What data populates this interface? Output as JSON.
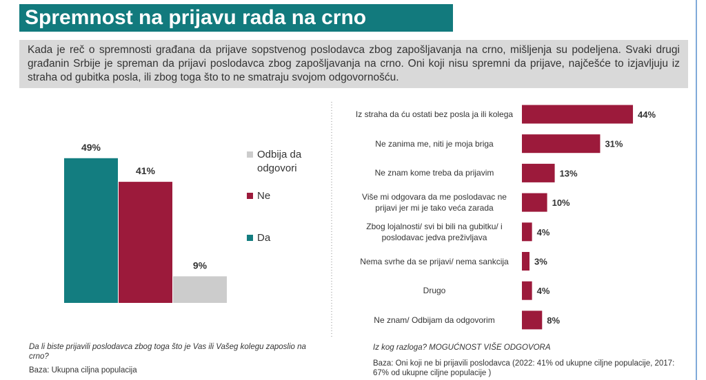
{
  "title": "Spremnost na prijavu rada na crno",
  "intro": "Kada je reč o spremnosti građana da prijave sopstvenog poslodavca zbog zapošljavanja na crno, mišljenja su podeljena. Svaki drugi građanin Srbije je spreman da prijavi poslodavca zbog zapošljavanja na crno. Oni koji nisu spremni da prijave, najčešće to izjavljuju iz straha od gubitka posla, ili zbog toga što to ne smatraju svojom odgovornošću.",
  "chart_data": [
    {
      "type": "bar",
      "categories": [
        null
      ],
      "legend": "right",
      "series": [
        {
          "name": "Da",
          "color": "#137d80",
          "values": [
            49
          ],
          "value_labels": [
            "49%"
          ]
        },
        {
          "name": "Ne",
          "color": "#9c1a3b",
          "values": [
            41
          ],
          "value_labels": [
            "41%"
          ]
        },
        {
          "name": "Odbija da odgovori",
          "color": "#cccccc",
          "values": [
            9
          ],
          "value_labels": [
            "9%"
          ]
        }
      ]
    },
    {
      "type": "hbar",
      "color": "#9c1a3b",
      "categories": [
        "Iz straha da ću ostati bez posla ja ili kolega",
        "Ne zanima me, niti je moja briga",
        "Ne znam kome treba da prijavim",
        "Više mi odgovara da me poslodavac ne prijavi jer mi je tako veća zarada",
        "Zbog lojalnosti/ svi bi bili na gubitku/ i poslodavac jedva preživljava",
        "Nema svrhe da se prijavi/ nema sankcija",
        "Drugo",
        "Ne znam/ Odbijam da odgovorim"
      ],
      "values": [
        44,
        31,
        13,
        10,
        4,
        3,
        4,
        8
      ],
      "value_labels": [
        "44%",
        "31%",
        "13%",
        "10%",
        "4%",
        "3%",
        "4%",
        "8%"
      ]
    }
  ],
  "notes": {
    "left_question": "Da li biste prijavili poslodavca zbog toga što je Vas ili Vašeg kolegu zaposlio na crno?",
    "left_base": "Baza: Ukupna ciljna populacija",
    "right_question": "Iz kog razloga? MOGUĆNOST VIŠE ODGOVORA",
    "right_base": "Baza: Oni koji ne bi prijavili poslodavca (2022: 41% od ukupne ciljne populacije, 2017: 67% od ukupne ciljne populacije )"
  }
}
